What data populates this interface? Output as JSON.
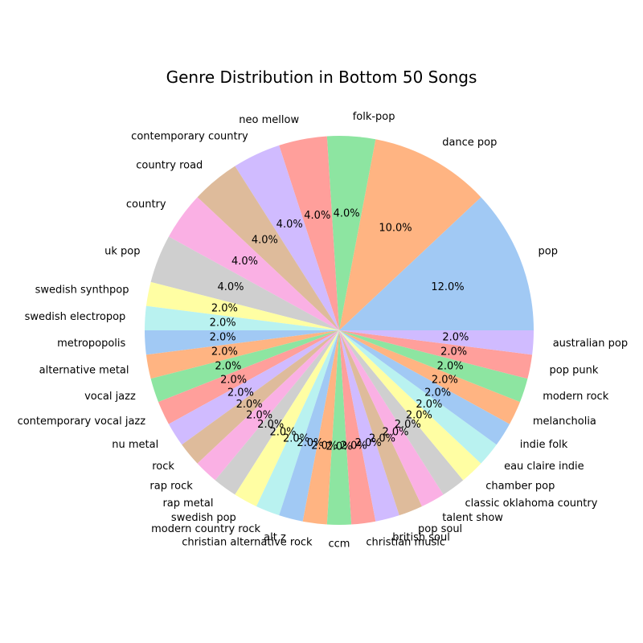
{
  "chart_data": {
    "type": "pie",
    "title": "Genre Distribution in Bottom 50 Songs",
    "start_angle_deg": 0,
    "direction": "counterclockwise",
    "slices": [
      {
        "label": "pop",
        "value": 12.0,
        "pct_label": "12.0%"
      },
      {
        "label": "dance pop",
        "value": 10.0,
        "pct_label": "10.0%"
      },
      {
        "label": "folk-pop",
        "value": 4.0,
        "pct_label": "4.0%"
      },
      {
        "label": "neo mellow",
        "value": 4.0,
        "pct_label": "4.0%"
      },
      {
        "label": "contemporary country",
        "value": 4.0,
        "pct_label": "4.0%"
      },
      {
        "label": "country road",
        "value": 4.0,
        "pct_label": "4.0%"
      },
      {
        "label": "country",
        "value": 4.0,
        "pct_label": "4.0%"
      },
      {
        "label": "uk pop",
        "value": 4.0,
        "pct_label": "4.0%"
      },
      {
        "label": "swedish synthpop",
        "value": 2.0,
        "pct_label": "2.0%"
      },
      {
        "label": "swedish electropop",
        "value": 2.0,
        "pct_label": "2.0%"
      },
      {
        "label": "metropopolis",
        "value": 2.0,
        "pct_label": "2.0%"
      },
      {
        "label": "alternative metal",
        "value": 2.0,
        "pct_label": "2.0%"
      },
      {
        "label": "vocal jazz",
        "value": 2.0,
        "pct_label": "2.0%"
      },
      {
        "label": "contemporary vocal jazz",
        "value": 2.0,
        "pct_label": "2.0%"
      },
      {
        "label": "nu metal",
        "value": 2.0,
        "pct_label": "2.0%"
      },
      {
        "label": "rock",
        "value": 2.0,
        "pct_label": "2.0%"
      },
      {
        "label": "rap rock",
        "value": 2.0,
        "pct_label": "2.0%"
      },
      {
        "label": "rap metal",
        "value": 2.0,
        "pct_label": "2.0%"
      },
      {
        "label": "swedish pop",
        "value": 2.0,
        "pct_label": "2.0%"
      },
      {
        "label": "modern country rock",
        "value": 2.0,
        "pct_label": "2.0%"
      },
      {
        "label": "alt z",
        "value": 2.0,
        "pct_label": "2.0%"
      },
      {
        "label": "christian alternative rock",
        "value": 2.0,
        "pct_label": "2.0%"
      },
      {
        "label": "ccm",
        "value": 2.0,
        "pct_label": "2.0%"
      },
      {
        "label": "christian music",
        "value": 2.0,
        "pct_label": "2.0%"
      },
      {
        "label": "british soul",
        "value": 2.0,
        "pct_label": "2.0%"
      },
      {
        "label": "pop soul",
        "value": 2.0,
        "pct_label": "2.0%"
      },
      {
        "label": "talent show",
        "value": 2.0,
        "pct_label": "2.0%"
      },
      {
        "label": "classic oklahoma country",
        "value": 2.0,
        "pct_label": "2.0%"
      },
      {
        "label": "chamber pop",
        "value": 2.0,
        "pct_label": "2.0%"
      },
      {
        "label": "eau claire indie",
        "value": 2.0,
        "pct_label": "2.0%"
      },
      {
        "label": "indie folk",
        "value": 2.0,
        "pct_label": "2.0%"
      },
      {
        "label": "melancholia",
        "value": 2.0,
        "pct_label": "2.0%"
      },
      {
        "label": "modern rock",
        "value": 2.0,
        "pct_label": "2.0%"
      },
      {
        "label": "pop punk",
        "value": 2.0,
        "pct_label": "2.0%"
      },
      {
        "label": "australian pop",
        "value": 2.0,
        "pct_label": "2.0%"
      }
    ],
    "palette": [
      "#a1c9f4",
      "#ffb482",
      "#8de5a1",
      "#ff9f9b",
      "#d0bbff",
      "#debb9b",
      "#fab0e4",
      "#cfcfcf",
      "#fffea3",
      "#b9f2f0"
    ]
  }
}
